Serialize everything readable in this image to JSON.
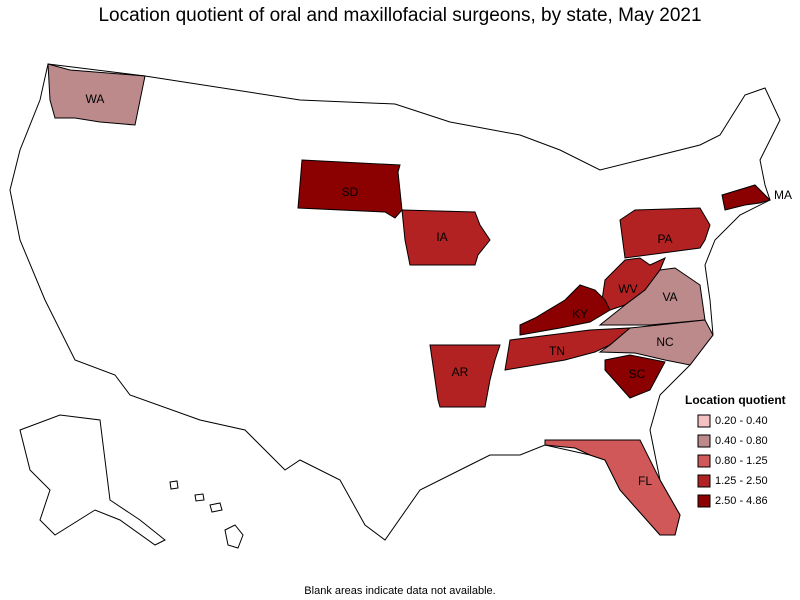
{
  "title": "Location quotient of oral and maxillofacial surgeons, by state, May 2021",
  "map": {
    "states": [
      {
        "label": "WA",
        "color": "#bc8a8a"
      },
      {
        "label": "SD",
        "color": "#8b0000"
      },
      {
        "label": "IA",
        "color": "#b22222"
      },
      {
        "label": "AR",
        "color": "#b22222"
      },
      {
        "label": "PA",
        "color": "#b22222"
      },
      {
        "label": "WV",
        "color": "#b22222"
      },
      {
        "label": "KY",
        "color": "#8b0000"
      },
      {
        "label": "TN",
        "color": "#b22222"
      },
      {
        "label": "VA",
        "color": "#bc8a8a"
      },
      {
        "label": "NC",
        "color": "#bc8a8a"
      },
      {
        "label": "SC",
        "color": "#8b0000"
      },
      {
        "label": "FL",
        "color": "#d05858"
      },
      {
        "label": "MA",
        "color": "#8b0000"
      }
    ]
  },
  "legend": {
    "title": "Location quotient",
    "items": [
      {
        "label": "0.20 - 0.40",
        "color": "#f5c0c0"
      },
      {
        "label": "0.40 - 0.80",
        "color": "#bc8a8a"
      },
      {
        "label": "0.80 - 1.25",
        "color": "#d05858"
      },
      {
        "label": "1.25 - 2.50",
        "color": "#b22222"
      },
      {
        "label": "2.50 - 4.86",
        "color": "#8b0000"
      }
    ]
  },
  "note": "Blank areas indicate data not available."
}
